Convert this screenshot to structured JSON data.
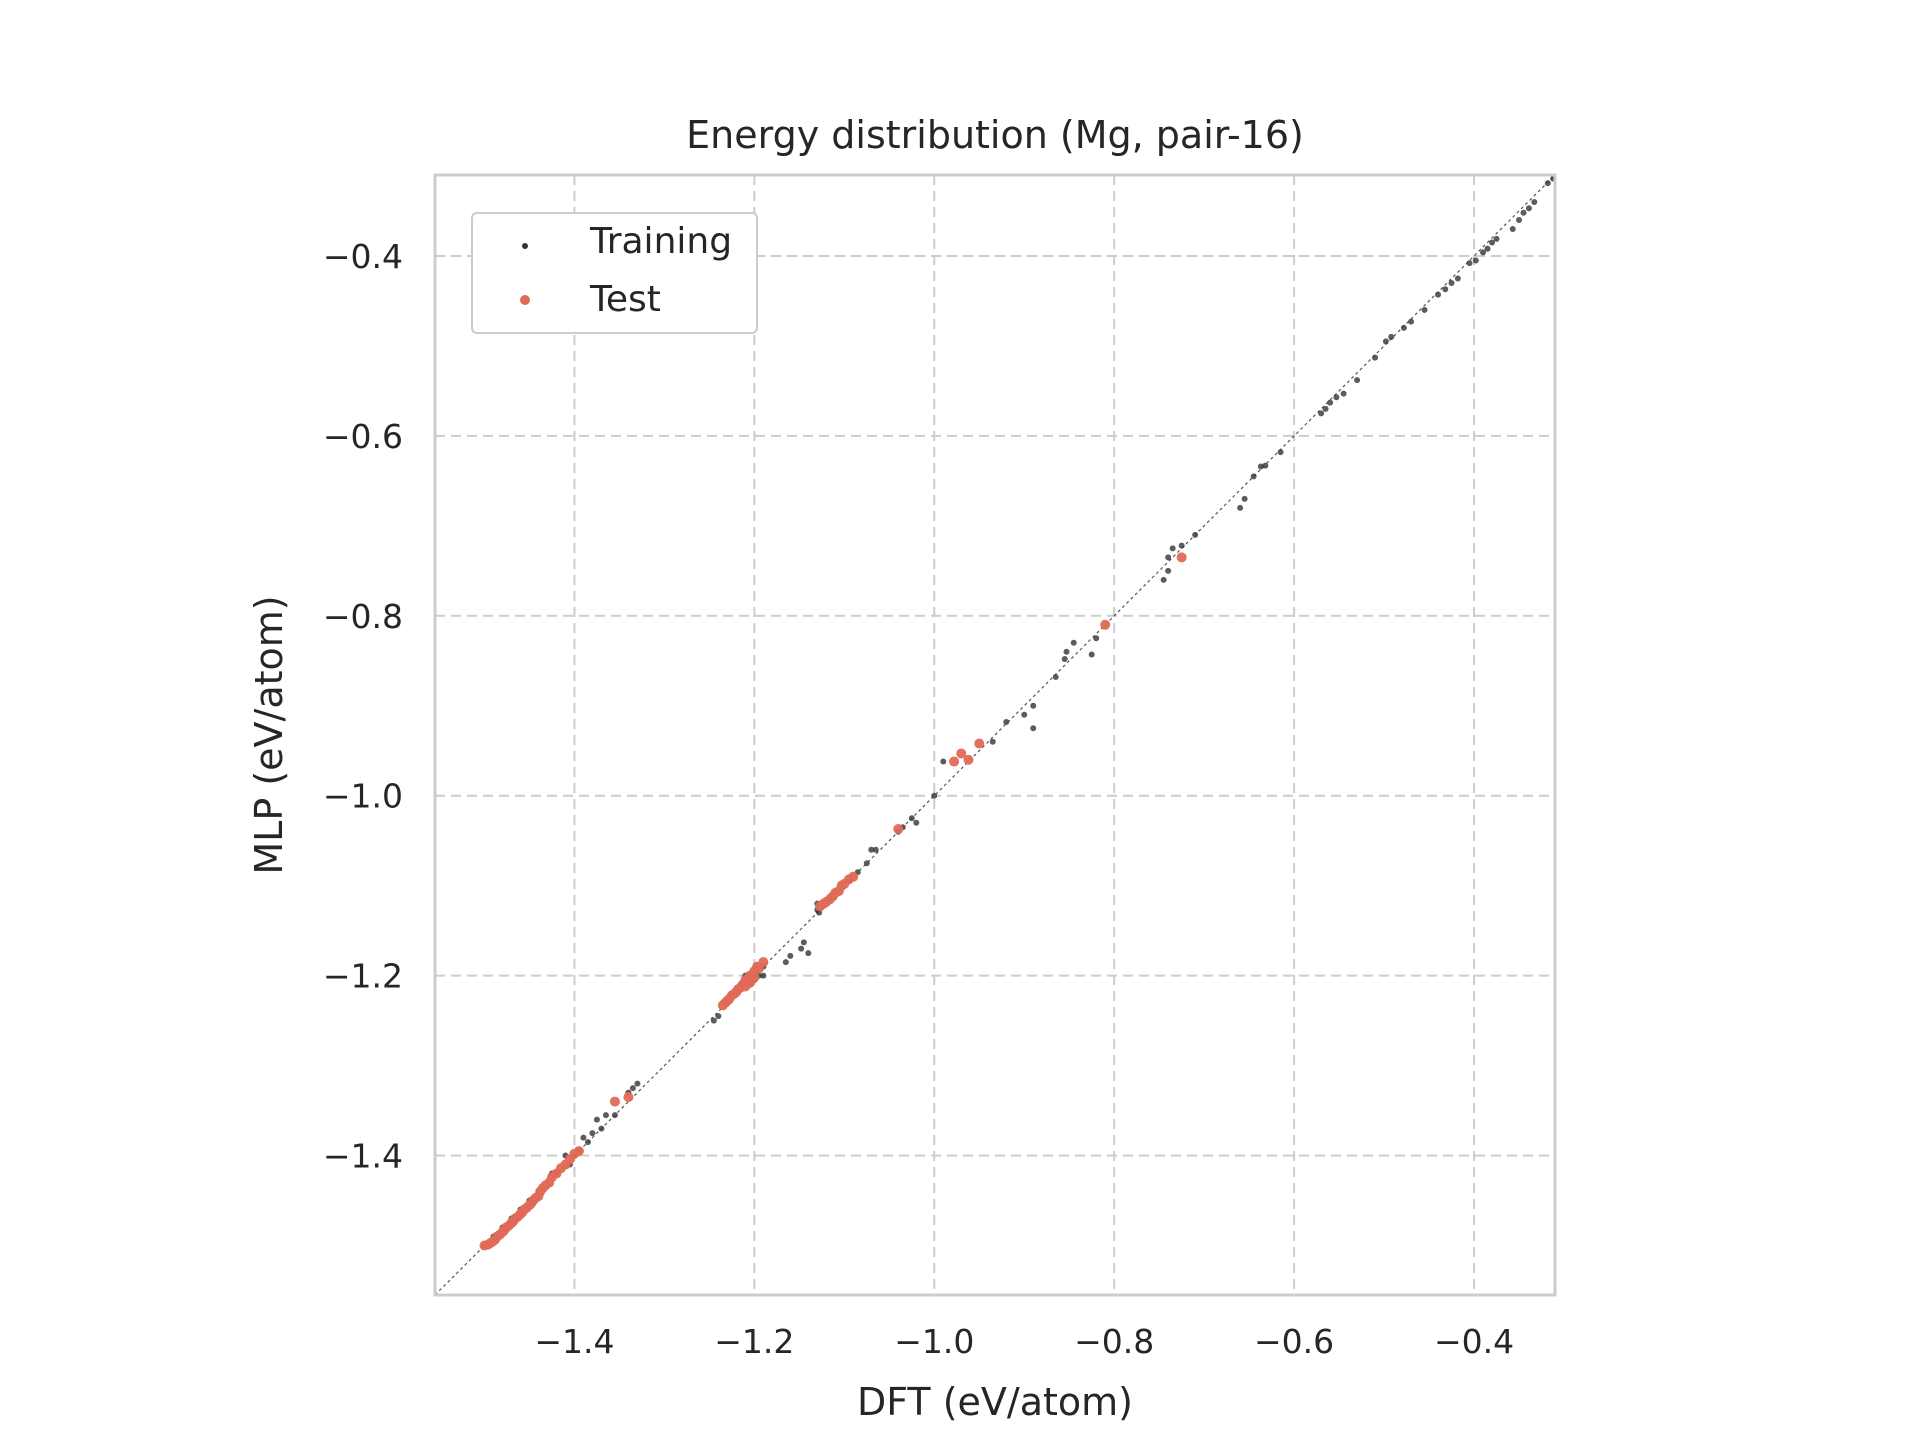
{
  "chart_data": {
    "type": "scatter",
    "title": "Energy distribution (Mg, pair-16)",
    "xlabel": "DFT (eV/atom)",
    "ylabel": "MLP (eV/atom)",
    "xlim": [
      -1.555,
      -0.31
    ],
    "ylim": [
      -1.555,
      -0.31
    ],
    "xticks": [
      -1.4,
      -1.2,
      -1.0,
      -0.8,
      -0.6,
      -0.4
    ],
    "yticks": [
      -1.4,
      -1.2,
      -1.0,
      -0.8,
      -0.6,
      -0.4
    ],
    "xtick_labels": [
      "−1.4",
      "−1.2",
      "−1.0",
      "−0.8",
      "−0.6",
      "−0.4"
    ],
    "ytick_labels": [
      "−1.4",
      "−1.2",
      "−1.0",
      "−0.8",
      "−0.6",
      "−0.4"
    ],
    "grid": true,
    "grid_style": "dashed",
    "legend_position": "top-left",
    "reference_line": "y = x",
    "series": [
      {
        "name": "Training",
        "color": "#333333",
        "points": [
          [
            -0.312,
            -0.314
          ],
          [
            -0.318,
            -0.319
          ],
          [
            -0.333,
            -0.34
          ],
          [
            -0.339,
            -0.347
          ],
          [
            -0.345,
            -0.352
          ],
          [
            -0.35,
            -0.36
          ],
          [
            -0.357,
            -0.37
          ],
          [
            -0.375,
            -0.381
          ],
          [
            -0.38,
            -0.385
          ],
          [
            -0.385,
            -0.392
          ],
          [
            -0.39,
            -0.396
          ],
          [
            -0.398,
            -0.405
          ],
          [
            -0.405,
            -0.408
          ],
          [
            -0.418,
            -0.425
          ],
          [
            -0.425,
            -0.43
          ],
          [
            -0.432,
            -0.437
          ],
          [
            -0.44,
            -0.443
          ],
          [
            -0.455,
            -0.46
          ],
          [
            -0.47,
            -0.473
          ],
          [
            -0.478,
            -0.48
          ],
          [
            -0.492,
            -0.49
          ],
          [
            -0.498,
            -0.495
          ],
          [
            -0.51,
            -0.513
          ],
          [
            -0.53,
            -0.538
          ],
          [
            -0.545,
            -0.553
          ],
          [
            -0.553,
            -0.557
          ],
          [
            -0.56,
            -0.563
          ],
          [
            -0.565,
            -0.57
          ],
          [
            -0.57,
            -0.575
          ],
          [
            -0.615,
            -0.618
          ],
          [
            -0.632,
            -0.633
          ],
          [
            -0.637,
            -0.634
          ],
          [
            -0.645,
            -0.645
          ],
          [
            -0.655,
            -0.67
          ],
          [
            -0.66,
            -0.68
          ],
          [
            -0.71,
            -0.71
          ],
          [
            -0.725,
            -0.722
          ],
          [
            -0.735,
            -0.725
          ],
          [
            -0.74,
            -0.735
          ],
          [
            -0.74,
            -0.75
          ],
          [
            -0.745,
            -0.76
          ],
          [
            -0.82,
            -0.825
          ],
          [
            -0.825,
            -0.843
          ],
          [
            -0.845,
            -0.83
          ],
          [
            -0.853,
            -0.84
          ],
          [
            -0.855,
            -0.848
          ],
          [
            -0.865,
            -0.868
          ],
          [
            -0.89,
            -0.9
          ],
          [
            -0.89,
            -0.925
          ],
          [
            -0.92,
            -0.918
          ],
          [
            -0.9,
            -0.91
          ],
          [
            -0.935,
            -0.94
          ],
          [
            -0.99,
            -0.962
          ],
          [
            -1.0,
            -1.0
          ],
          [
            -1.02,
            -1.03
          ],
          [
            -1.025,
            -1.025
          ],
          [
            -1.035,
            -1.035
          ],
          [
            -1.04,
            -1.04
          ],
          [
            -1.065,
            -1.06
          ],
          [
            -1.07,
            -1.06
          ],
          [
            -1.075,
            -1.075
          ],
          [
            -1.085,
            -1.085
          ],
          [
            -1.095,
            -1.095
          ],
          [
            -1.128,
            -1.13
          ],
          [
            -1.13,
            -1.127
          ],
          [
            -1.13,
            -1.12
          ],
          [
            -1.14,
            -1.175
          ],
          [
            -1.145,
            -1.163
          ],
          [
            -1.148,
            -1.17
          ],
          [
            -1.16,
            -1.178
          ],
          [
            -1.165,
            -1.185
          ],
          [
            -1.19,
            -1.19
          ],
          [
            -1.19,
            -1.2
          ],
          [
            -1.195,
            -1.2
          ],
          [
            -1.2,
            -1.205
          ],
          [
            -1.205,
            -1.205
          ],
          [
            -1.205,
            -1.21
          ],
          [
            -1.21,
            -1.2
          ],
          [
            -1.215,
            -1.21
          ],
          [
            -1.22,
            -1.22
          ],
          [
            -1.225,
            -1.22
          ],
          [
            -1.23,
            -1.23
          ],
          [
            -1.235,
            -1.23
          ],
          [
            -1.24,
            -1.245
          ],
          [
            -1.245,
            -1.25
          ],
          [
            -1.33,
            -1.32
          ],
          [
            -1.335,
            -1.325
          ],
          [
            -1.34,
            -1.33
          ],
          [
            -1.355,
            -1.355
          ],
          [
            -1.365,
            -1.355
          ],
          [
            -1.37,
            -1.37
          ],
          [
            -1.375,
            -1.36
          ],
          [
            -1.38,
            -1.375
          ],
          [
            -1.385,
            -1.385
          ],
          [
            -1.39,
            -1.38
          ],
          [
            -1.395,
            -1.395
          ],
          [
            -1.4,
            -1.4
          ],
          [
            -1.405,
            -1.41
          ],
          [
            -1.41,
            -1.4
          ],
          [
            -1.42,
            -1.42
          ],
          [
            -1.425,
            -1.42
          ],
          [
            -1.43,
            -1.43
          ],
          [
            -1.44,
            -1.44
          ],
          [
            -1.45,
            -1.45
          ],
          [
            -1.46,
            -1.46
          ],
          [
            -1.47,
            -1.47
          ],
          [
            -1.48,
            -1.48
          ],
          [
            -1.49,
            -1.49
          ],
          [
            -1.5,
            -1.5
          ]
        ]
      },
      {
        "name": "Test",
        "color": "#e06957",
        "points": [
          [
            -0.725,
            -0.735
          ],
          [
            -0.81,
            -0.81
          ],
          [
            -0.95,
            -0.942
          ],
          [
            -0.962,
            -0.96
          ],
          [
            -0.97,
            -0.953
          ],
          [
            -0.978,
            -0.962
          ],
          [
            -1.04,
            -1.037
          ],
          [
            -1.09,
            -1.09
          ],
          [
            -1.095,
            -1.093
          ],
          [
            -1.1,
            -1.098
          ],
          [
            -1.103,
            -1.1
          ],
          [
            -1.106,
            -1.106
          ],
          [
            -1.11,
            -1.108
          ],
          [
            -1.113,
            -1.112
          ],
          [
            -1.116,
            -1.115
          ],
          [
            -1.12,
            -1.118
          ],
          [
            -1.123,
            -1.12
          ],
          [
            -1.127,
            -1.123
          ],
          [
            -1.19,
            -1.185
          ],
          [
            -1.195,
            -1.192
          ],
          [
            -1.197,
            -1.19
          ],
          [
            -1.2,
            -1.195
          ],
          [
            -1.2,
            -1.202
          ],
          [
            -1.202,
            -1.2
          ],
          [
            -1.205,
            -1.2
          ],
          [
            -1.205,
            -1.208
          ],
          [
            -1.207,
            -1.205
          ],
          [
            -1.21,
            -1.205
          ],
          [
            -1.21,
            -1.212
          ],
          [
            -1.213,
            -1.21
          ],
          [
            -1.215,
            -1.213
          ],
          [
            -1.218,
            -1.215
          ],
          [
            -1.22,
            -1.218
          ],
          [
            -1.222,
            -1.22
          ],
          [
            -1.225,
            -1.222
          ],
          [
            -1.228,
            -1.226
          ],
          [
            -1.23,
            -1.228
          ],
          [
            -1.232,
            -1.23
          ],
          [
            -1.235,
            -1.233
          ],
          [
            -1.355,
            -1.34
          ],
          [
            -1.34,
            -1.335
          ],
          [
            -1.395,
            -1.395
          ],
          [
            -1.4,
            -1.398
          ],
          [
            -1.405,
            -1.404
          ],
          [
            -1.41,
            -1.41
          ],
          [
            -1.415,
            -1.414
          ],
          [
            -1.42,
            -1.42
          ],
          [
            -1.425,
            -1.424
          ],
          [
            -1.428,
            -1.43
          ],
          [
            -1.432,
            -1.433
          ],
          [
            -1.435,
            -1.436
          ],
          [
            -1.438,
            -1.44
          ],
          [
            -1.44,
            -1.445
          ],
          [
            -1.443,
            -1.447
          ],
          [
            -1.446,
            -1.45
          ],
          [
            -1.448,
            -1.453
          ],
          [
            -1.45,
            -1.455
          ],
          [
            -1.453,
            -1.458
          ],
          [
            -1.456,
            -1.46
          ],
          [
            -1.458,
            -1.463
          ],
          [
            -1.46,
            -1.465
          ],
          [
            -1.463,
            -1.468
          ],
          [
            -1.466,
            -1.47
          ],
          [
            -1.468,
            -1.473
          ],
          [
            -1.47,
            -1.475
          ],
          [
            -1.473,
            -1.478
          ],
          [
            -1.476,
            -1.48
          ],
          [
            -1.478,
            -1.483
          ],
          [
            -1.48,
            -1.485
          ],
          [
            -1.483,
            -1.488
          ],
          [
            -1.486,
            -1.49
          ],
          [
            -1.488,
            -1.493
          ],
          [
            -1.49,
            -1.495
          ],
          [
            -1.493,
            -1.497
          ],
          [
            -1.496,
            -1.499
          ],
          [
            -1.5,
            -1.5
          ]
        ]
      }
    ]
  }
}
